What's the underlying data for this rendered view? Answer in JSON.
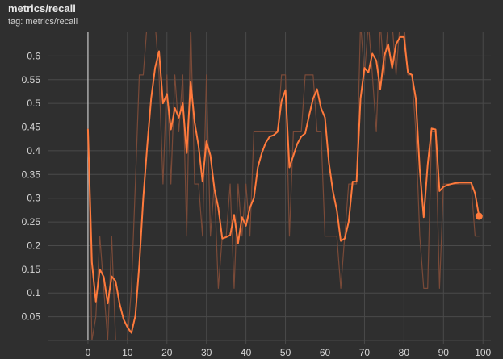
{
  "panel": {
    "title": "metrics/recall",
    "tag": "tag: metrics/recall"
  },
  "colors": {
    "background": "#2f2f2f",
    "grid": "#4a4a4a",
    "smoothed_line": "#ff7a3c",
    "raw_line": "#7a4a38",
    "zero_axis": "#c8c8c8",
    "tick_text": "#d6d6d6"
  },
  "chart_data": {
    "type": "line",
    "title": "metrics/recall",
    "xlabel": "",
    "ylabel": "",
    "xlim": [
      -10,
      102
    ],
    "ylim": [
      0,
      0.65
    ],
    "grid": true,
    "xticks": [
      0,
      10,
      20,
      30,
      40,
      50,
      60,
      70,
      80,
      90,
      100
    ],
    "yticks": [
      0.05,
      0.1,
      0.15,
      0.2,
      0.25,
      0.3,
      0.35,
      0.4,
      0.45,
      0.5,
      0.55,
      0.6
    ],
    "series": [
      {
        "role": "raw",
        "x": [
          0,
          1,
          2,
          3,
          4,
          5,
          6,
          7,
          8,
          9,
          10,
          11,
          12,
          13,
          14,
          15,
          16,
          17,
          18,
          19,
          20,
          21,
          22,
          23,
          24,
          25,
          26,
          27,
          28,
          29,
          30,
          31,
          32,
          33,
          34,
          35,
          36,
          37,
          38,
          39,
          40,
          41,
          42,
          43,
          44,
          45,
          46,
          47,
          48,
          49,
          50,
          51,
          52,
          53,
          54,
          55,
          56,
          57,
          58,
          59,
          60,
          61,
          62,
          63,
          64,
          65,
          66,
          67,
          68,
          69,
          70,
          71,
          72,
          73,
          74,
          75,
          76,
          77,
          78,
          79,
          80,
          81,
          82,
          83,
          84,
          85,
          86,
          87,
          88,
          89,
          90,
          91,
          92,
          93,
          94,
          95,
          96,
          97,
          98,
          99
        ],
        "values": [
          0.44,
          0.0,
          0.05,
          0.22,
          0.11,
          0.0,
          0.22,
          0.0,
          0.0,
          0.0,
          0.0,
          0.11,
          0.33,
          0.56,
          0.56,
          0.67,
          0.67,
          0.67,
          0.56,
          0.33,
          0.56,
          0.33,
          0.56,
          0.44,
          0.56,
          0.22,
          0.67,
          0.33,
          0.33,
          0.22,
          0.56,
          0.22,
          0.33,
          0.11,
          0.22,
          0.22,
          0.33,
          0.11,
          0.33,
          0.22,
          0.33,
          0.22,
          0.44,
          0.44,
          0.44,
          0.44,
          0.44,
          0.44,
          0.44,
          0.56,
          0.56,
          0.22,
          0.44,
          0.44,
          0.44,
          0.56,
          0.56,
          0.56,
          0.44,
          0.44,
          0.22,
          0.22,
          0.22,
          0.22,
          0.11,
          0.22,
          0.33,
          0.33,
          0.33,
          0.67,
          0.56,
          0.67,
          0.56,
          0.44,
          0.67,
          0.56,
          0.67,
          0.67,
          0.56,
          0.67,
          0.67,
          0.56,
          0.56,
          0.44,
          0.22,
          0.11,
          0.11,
          0.44,
          0.44,
          0.11,
          0.33,
          0.33,
          0.33,
          0.33,
          0.33,
          0.33,
          0.33,
          0.33,
          0.22,
          0.22
        ]
      },
      {
        "role": "smoothed",
        "x": [
          0,
          1,
          2,
          3,
          4,
          5,
          6,
          7,
          8,
          9,
          10,
          11,
          12,
          13,
          14,
          15,
          16,
          17,
          18,
          19,
          20,
          21,
          22,
          23,
          24,
          25,
          26,
          27,
          28,
          29,
          30,
          31,
          32,
          33,
          34,
          35,
          36,
          37,
          38,
          39,
          40,
          41,
          42,
          43,
          44,
          45,
          46,
          47,
          48,
          49,
          50,
          51,
          52,
          53,
          54,
          55,
          56,
          57,
          58,
          59,
          60,
          61,
          62,
          63,
          64,
          65,
          66,
          67,
          68,
          69,
          70,
          71,
          72,
          73,
          74,
          75,
          76,
          77,
          78,
          79,
          80,
          81,
          82,
          83,
          84,
          85,
          86,
          87,
          88,
          89,
          90,
          91,
          92,
          93,
          94,
          95,
          96,
          97,
          98,
          99
        ],
        "values": [
          0.445,
          0.165,
          0.082,
          0.15,
          0.134,
          0.078,
          0.135,
          0.125,
          0.078,
          0.045,
          0.028,
          0.016,
          0.052,
          0.16,
          0.3,
          0.41,
          0.51,
          0.575,
          0.61,
          0.5,
          0.52,
          0.445,
          0.49,
          0.47,
          0.5,
          0.395,
          0.545,
          0.46,
          0.41,
          0.335,
          0.42,
          0.39,
          0.32,
          0.28,
          0.215,
          0.218,
          0.222,
          0.265,
          0.205,
          0.26,
          0.242,
          0.28,
          0.3,
          0.365,
          0.395,
          0.417,
          0.43,
          0.433,
          0.44,
          0.505,
          0.528,
          0.365,
          0.39,
          0.415,
          0.43,
          0.437,
          0.475,
          0.51,
          0.53,
          0.49,
          0.47,
          0.375,
          0.315,
          0.275,
          0.21,
          0.215,
          0.25,
          0.335,
          0.335,
          0.51,
          0.575,
          0.565,
          0.605,
          0.59,
          0.53,
          0.6,
          0.625,
          0.575,
          0.625,
          0.64,
          0.64,
          0.565,
          0.56,
          0.51,
          0.36,
          0.26,
          0.37,
          0.447,
          0.445,
          0.315,
          0.324,
          0.328,
          0.33,
          0.332,
          0.333,
          0.333,
          0.333,
          0.333,
          0.31,
          0.262
        ]
      }
    ]
  }
}
